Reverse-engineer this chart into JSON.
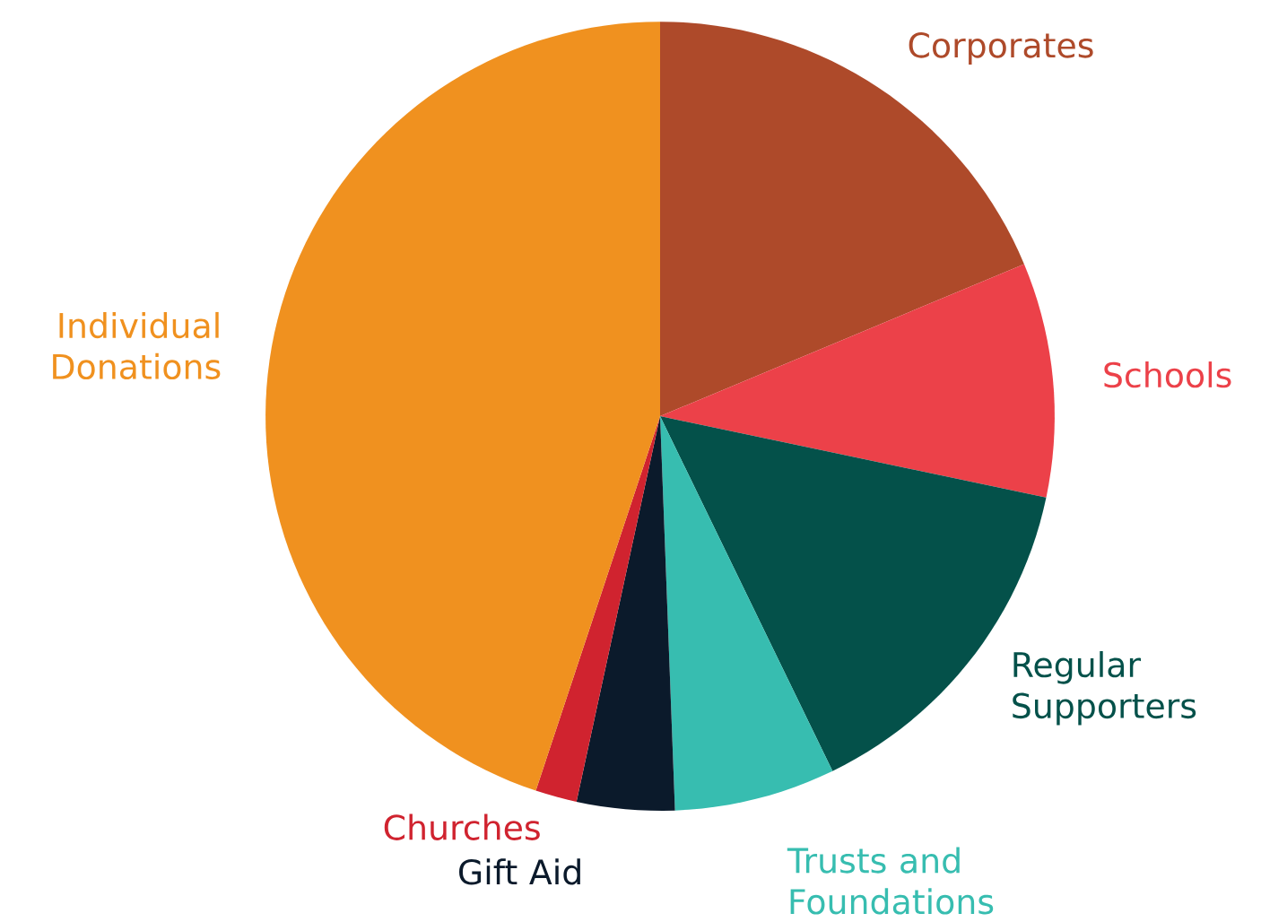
{
  "chart_data": {
    "type": "pie",
    "categories": [
      "Corporates",
      "Schools",
      "Regular Supporters",
      "Trusts and Foundations",
      "Gift Aid",
      "Churches",
      "Individual Donations"
    ],
    "values": [
      18.7,
      9.6,
      14.5,
      6.6,
      4.0,
      1.7,
      44.9
    ],
    "colors": [
      "#ae4a2a",
      "#ec4149",
      "#04514a",
      "#37bdb0",
      "#0b1a2b",
      "#d0232f",
      "#f0911f"
    ]
  }
}
